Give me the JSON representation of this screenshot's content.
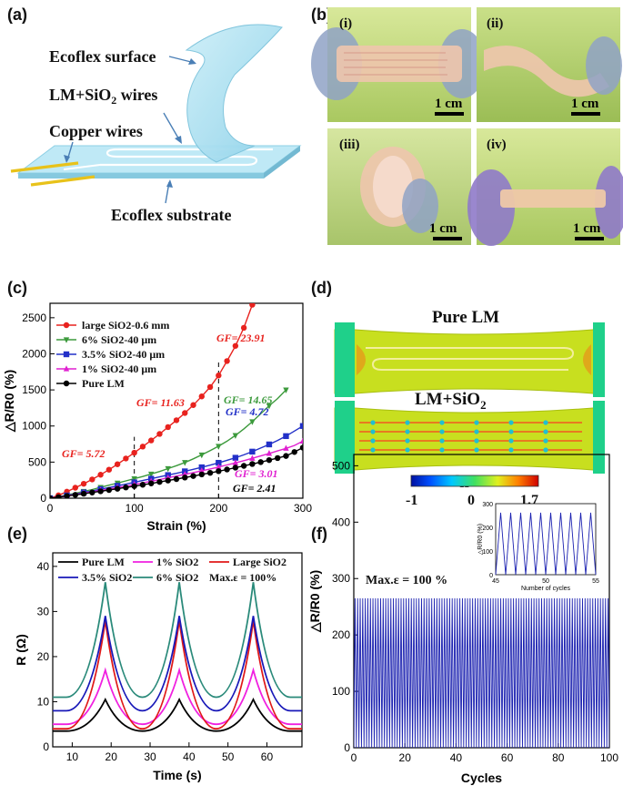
{
  "panels": {
    "a": {
      "label": "(a)",
      "callouts": {
        "surface": "Ecoflex surface",
        "wires_pre": "LM+SiO",
        "wires_sub": "2",
        "wires_post": " wires",
        "copper": "Copper wires",
        "substrate": "Ecoflex substrate"
      }
    },
    "b": {
      "label": "(b)",
      "photos": [
        {
          "label": "(i)",
          "scale": "1 cm"
        },
        {
          "label": "(ii)",
          "scale": "1 cm"
        },
        {
          "label": "(iii)",
          "scale": "1 cm"
        },
        {
          "label": "(iv)",
          "scale": "1 cm"
        }
      ]
    },
    "c": {
      "label": "(c)"
    },
    "d": {
      "label": "(d)",
      "top_title": "Pure LM",
      "bottom_title_pre": "LM+SiO",
      "bottom_title_sub": "2",
      "colorbar_symbol": "ε",
      "colorbar_sub": "11",
      "colorbar_ticks": [
        "-1",
        "0",
        "1.7"
      ],
      "colors": {
        "body": "#c8df1f",
        "grip": "#1fd08a",
        "hot": "#e8901a"
      }
    },
    "e": {
      "label": "(e)"
    },
    "f": {
      "label": "(f)"
    }
  },
  "chart_data": [
    {
      "id": "c",
      "type": "line",
      "xlabel": "Strain (%)",
      "ylabel": "△R/R0 (%)",
      "xlim": [
        0,
        300
      ],
      "ylim": [
        0,
        2700
      ],
      "xticks": [
        0,
        100,
        200,
        300
      ],
      "yticks": [
        0,
        500,
        1000,
        1500,
        2000,
        2500
      ],
      "legend_position": "top-left",
      "series": [
        {
          "name": "large  SiO2-0.6 mm",
          "color": "#e8221e",
          "marker": "circle",
          "x": [
            0,
            10,
            20,
            30,
            40,
            50,
            60,
            70,
            80,
            90,
            100,
            110,
            120,
            130,
            140,
            150,
            160,
            170,
            180,
            190,
            200,
            210,
            220,
            230,
            240
          ],
          "y": [
            0,
            40,
            90,
            145,
            200,
            260,
            325,
            395,
            470,
            550,
            630,
            715,
            800,
            890,
            985,
            1080,
            1180,
            1290,
            1410,
            1540,
            1700,
            1900,
            2110,
            2360,
            2680
          ]
        },
        {
          "name": "6%    SiO2-40 μm",
          "color": "#3c9a3c",
          "marker": "triangle-down",
          "x": [
            0,
            10,
            20,
            30,
            40,
            50,
            60,
            70,
            80,
            90,
            100,
            110,
            120,
            130,
            140,
            150,
            160,
            170,
            180,
            190,
            200,
            210,
            220,
            230,
            240,
            250,
            260,
            270,
            280
          ],
          "y": [
            0,
            20,
            45,
            70,
            95,
            120,
            150,
            180,
            210,
            240,
            270,
            300,
            335,
            370,
            410,
            450,
            495,
            545,
            600,
            660,
            720,
            790,
            870,
            960,
            1060,
            1170,
            1280,
            1380,
            1500
          ]
        },
        {
          "name": "3.5% SiO2-40 μm",
          "color": "#2230c8",
          "marker": "square",
          "x": [
            0,
            10,
            20,
            30,
            40,
            50,
            60,
            70,
            80,
            90,
            100,
            110,
            120,
            130,
            140,
            150,
            160,
            170,
            180,
            190,
            200,
            210,
            220,
            230,
            240,
            250,
            260,
            270,
            280,
            290,
            300
          ],
          "y": [
            0,
            18,
            38,
            58,
            80,
            100,
            125,
            148,
            172,
            195,
            220,
            245,
            270,
            295,
            320,
            345,
            372,
            400,
            428,
            458,
            490,
            525,
            560,
            600,
            645,
            695,
            745,
            800,
            860,
            930,
            1000
          ]
        },
        {
          "name": "1%    SiO2-40 μm",
          "color": "#e020d0",
          "marker": "triangle-up",
          "x": [
            0,
            10,
            20,
            30,
            40,
            50,
            60,
            70,
            80,
            90,
            100,
            110,
            120,
            130,
            140,
            150,
            160,
            170,
            180,
            190,
            200,
            210,
            220,
            230,
            240,
            250,
            260,
            270,
            280,
            290,
            300
          ],
          "y": [
            0,
            16,
            34,
            52,
            70,
            88,
            108,
            128,
            148,
            168,
            190,
            212,
            235,
            258,
            282,
            306,
            330,
            355,
            380,
            405,
            432,
            460,
            490,
            520,
            552,
            585,
            620,
            655,
            690,
            730,
            790
          ]
        },
        {
          "name": "Pure   LM",
          "color": "#000000",
          "marker": "circle",
          "x": [
            0,
            10,
            20,
            30,
            40,
            50,
            60,
            70,
            80,
            90,
            100,
            110,
            120,
            130,
            140,
            150,
            160,
            170,
            180,
            190,
            200,
            210,
            220,
            230,
            240,
            250,
            260,
            270,
            280,
            290,
            300
          ],
          "y": [
            0,
            14,
            30,
            46,
            62,
            79,
            96,
            113,
            131,
            149,
            167,
            186,
            205,
            225,
            245,
            265,
            286,
            307,
            329,
            351,
            374,
            398,
            423,
            448,
            474,
            500,
            528,
            556,
            585,
            640,
            700
          ]
        }
      ],
      "annotations": [
        {
          "text": "GF= 5.72",
          "color": "#e8221e"
        },
        {
          "text": "GF= 11.63",
          "color": "#e8221e"
        },
        {
          "text": "GF= 23.91",
          "color": "#e8221e"
        },
        {
          "text": "GF= 14.65",
          "color": "#3c9a3c"
        },
        {
          "text": "GF= 4.72",
          "color": "#2230c8"
        },
        {
          "text": "GF= 3.01",
          "color": "#e020d0"
        },
        {
          "text": "GF= 2.41",
          "color": "#000000"
        }
      ],
      "dashed_lines_x": [
        100,
        200
      ]
    },
    {
      "id": "e",
      "type": "line",
      "xlabel": "Time (s)",
      "ylabel": "R (Ω)",
      "xlim": [
        5,
        69
      ],
      "ylim": [
        0,
        43
      ],
      "xticks": [
        10,
        20,
        30,
        40,
        50,
        60
      ],
      "yticks": [
        0,
        10,
        20,
        30,
        40
      ],
      "legend_position": "top",
      "legend_note": "Max.ε = 100%",
      "series": [
        {
          "name": "Pure LM",
          "color": "#000000",
          "base": 3.5,
          "peak": 10.5
        },
        {
          "name": "1% SiO2",
          "color": "#f020e0",
          "base": 5.0,
          "peak": 17.0
        },
        {
          "name": "Large SiO2",
          "color": "#e01818",
          "base": 4.0,
          "peak": 28.0
        },
        {
          "name": "3.5% SiO2",
          "color": "#1818b8",
          "base": 8.0,
          "peak": 29.0
        },
        {
          "name": "6% SiO2",
          "color": "#2a8a7a",
          "base": 11.0,
          "peak": 36.5
        }
      ],
      "cycle": {
        "start": 8.5,
        "peaks": [
          18.5,
          37.5,
          56.5
        ],
        "troughs": [
          28,
          47
        ]
      }
    },
    {
      "id": "f",
      "type": "line",
      "xlabel": "Cycles",
      "ylabel": "△R/R0 (%)",
      "xlim": [
        0,
        100
      ],
      "ylim": [
        0,
        520
      ],
      "xticks": [
        0,
        20,
        40,
        60,
        80,
        100
      ],
      "yticks": [
        0,
        100,
        200,
        300,
        400,
        500
      ],
      "annotation": "Max.ε = 100 %",
      "series": [
        {
          "name": "",
          "color": "#1a20b0",
          "min": 0,
          "max": 265,
          "cycles": 100
        }
      ],
      "inset": {
        "xlabel": "Number of cycles",
        "ylabel": "△R/R0 (%)",
        "xlim": [
          45,
          55
        ],
        "ylim": [
          0,
          300
        ],
        "xticks": [
          45,
          50,
          55
        ],
        "yticks": [
          0,
          100,
          200,
          300
        ],
        "min": 0,
        "max": 262,
        "cycles": 10
      }
    }
  ]
}
